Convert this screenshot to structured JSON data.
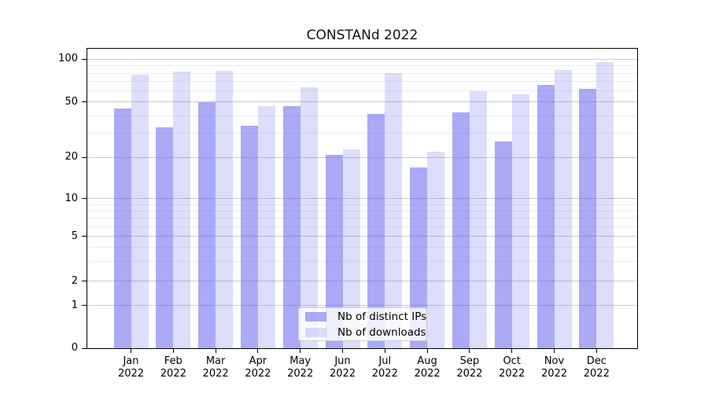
{
  "title": "CONSTANd 2022",
  "colors": {
    "bar_base_rgb": "85,85,238",
    "bar_dark_alpha": 0.5,
    "bar_light_alpha": 0.2,
    "bar_dark_hex": "#aaaaf6",
    "bar_light_hex": "#ddddfb",
    "grid_major": "#cccccc",
    "grid_minor": "#ededed",
    "spine": "#000000"
  },
  "legend": {
    "items": [
      {
        "label": "Nb of distinct IPs",
        "swatch": "dark"
      },
      {
        "label": "Nb of downloads",
        "swatch": "light"
      }
    ]
  },
  "chart_data": {
    "type": "bar",
    "title": "CONSTANd 2022",
    "categories": [
      "Jan",
      "Feb",
      "Mar",
      "Apr",
      "May",
      "Jun",
      "Jul",
      "Aug",
      "Sep",
      "Oct",
      "Nov",
      "Dec"
    ],
    "category_year": "2022",
    "series": [
      {
        "name": "Nb of distinct IPs",
        "values": [
          45,
          33,
          50,
          34,
          47,
          21,
          41,
          17,
          42,
          26,
          66,
          62
        ]
      },
      {
        "name": "Nb of downloads",
        "values": [
          78,
          82,
          83,
          47,
          64,
          23,
          80,
          22,
          60,
          57,
          84,
          96
        ]
      }
    ],
    "xlabel": "",
    "ylabel": "",
    "yscale": "symlog",
    "ylim": [
      0,
      110
    ],
    "y_major_ticks": [
      0,
      1,
      2,
      5,
      10,
      20,
      50,
      100
    ],
    "y_minor_ticks": [
      3,
      4,
      6,
      7,
      8,
      9,
      30,
      40,
      60,
      70,
      80,
      90
    ],
    "grid": "on",
    "legend_position": "lower center"
  }
}
